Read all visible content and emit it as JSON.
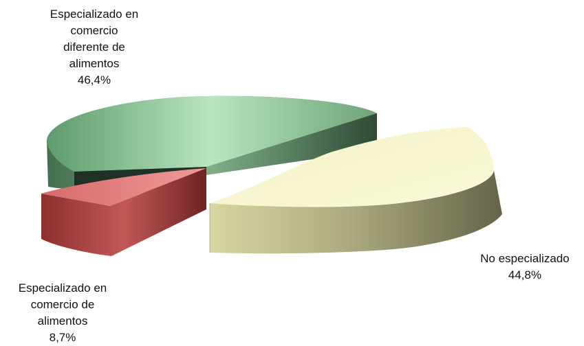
{
  "chart_data": {
    "type": "pie",
    "style": "3d-exploded",
    "slices": [
      {
        "label": "Especializado en comercio diferente de alimentos",
        "value": 46.4,
        "value_label": "46,4%",
        "color": "#7fae88"
      },
      {
        "label": "No especializado",
        "value": 44.8,
        "value_label": "44,8%",
        "color": "#ece9b4"
      },
      {
        "label": "Especializado en comercio de alimentos",
        "value": 8.7,
        "value_label": "8,7%",
        "color": "#c25858"
      }
    ],
    "labels": [
      {
        "lines": [
          "Especializado en",
          "comercio",
          "diferente de",
          "alimentos",
          "46,4%"
        ]
      },
      {
        "lines": [
          "No especializado",
          "44,8%"
        ]
      },
      {
        "lines": [
          "Especializado en",
          "comercio de",
          "alimentos",
          "8,7%"
        ]
      }
    ]
  }
}
